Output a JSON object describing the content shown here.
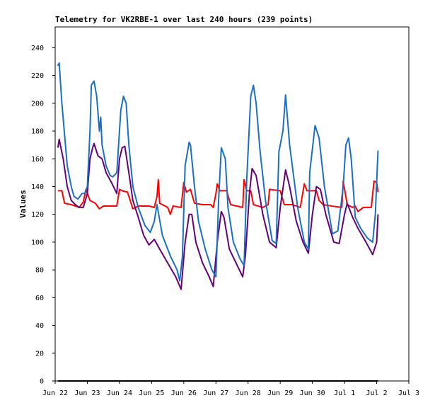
{
  "chart_data": {
    "type": "line",
    "title": "Telemetry for VK2RBE-1 over last 240 hours (239 points)",
    "y_label": "Values",
    "xlim": [
      0,
      264
    ],
    "xticks": [
      {
        "value": 0,
        "label": "Jun 22"
      },
      {
        "value": 24,
        "label": "Jun 23"
      },
      {
        "value": 48,
        "label": "Jun 24"
      },
      {
        "value": 72,
        "label": "Jun 25"
      },
      {
        "value": 96,
        "label": "Jun 26"
      },
      {
        "value": 120,
        "label": "Jun 27"
      },
      {
        "value": 144,
        "label": "Jun 28"
      },
      {
        "value": 168,
        "label": "Jun 29"
      },
      {
        "value": 192,
        "label": "Jun 30"
      },
      {
        "value": 216,
        "label": "Jul 1"
      },
      {
        "value": 240,
        "label": "Jul 2"
      },
      {
        "value": 264,
        "label": "Jul 3"
      }
    ],
    "ylim": [
      0,
      255
    ],
    "yticks": [
      0,
      20,
      40,
      60,
      80,
      100,
      120,
      140,
      160,
      180,
      200,
      220,
      240
    ],
    "grid": false,
    "series": [
      {
        "color": "#000000",
        "x": [
          2,
          241
        ],
        "values": [
          0,
          0
        ]
      },
      {
        "color": "#ff0000",
        "x": [
          2,
          5,
          7,
          12,
          18,
          21,
          23,
          26,
          30,
          33,
          36,
          42,
          46,
          48,
          50,
          54,
          56,
          58,
          62,
          70,
          74,
          76,
          77,
          78,
          84,
          86,
          88,
          94,
          96,
          98,
          101,
          104,
          110,
          116,
          118,
          120,
          121,
          123,
          128,
          131,
          140,
          141,
          143,
          146,
          148,
          155,
          159,
          160,
          168,
          171,
          177,
          183,
          186,
          188,
          195,
          197,
          200,
          206,
          214,
          215,
          218,
          222,
          224,
          226,
          230,
          236,
          238,
          240,
          241
        ],
        "values": [
          137,
          137,
          128,
          127,
          125,
          129,
          138,
          130,
          128,
          124,
          126,
          126,
          126,
          138,
          137,
          136,
          130,
          124,
          126,
          126,
          125,
          133,
          145,
          128,
          125,
          120,
          126,
          125,
          143,
          136,
          138,
          128,
          127,
          127,
          125,
          135,
          142,
          137,
          137,
          127,
          125,
          145,
          137,
          137,
          127,
          125,
          127,
          138,
          137,
          127,
          127,
          125,
          142,
          137,
          137,
          130,
          127,
          126,
          125,
          144,
          127,
          125,
          126,
          122,
          125,
          125,
          144,
          143,
          136
        ]
      },
      {
        "color": "#660077",
        "x": [
          2,
          3,
          6,
          9,
          12,
          15,
          18,
          21,
          24,
          26,
          28,
          29,
          32,
          35,
          38,
          42,
          46,
          48,
          50,
          52,
          55,
          58,
          62,
          66,
          70,
          74,
          78,
          84,
          90,
          94,
          97,
          100,
          102,
          105,
          110,
          115,
          118,
          121,
          124,
          126,
          130,
          135,
          140,
          142,
          145,
          147,
          150,
          155,
          160,
          165,
          168,
          172,
          175,
          180,
          185,
          189,
          192,
          195,
          198,
          202,
          208,
          212,
          216,
          218,
          222,
          226,
          232,
          237,
          240,
          241
        ],
        "values": [
          168,
          174,
          160,
          140,
          130,
          127,
          125,
          125,
          135,
          160,
          168,
          171,
          162,
          160,
          150,
          143,
          135,
          160,
          168,
          169,
          150,
          130,
          118,
          105,
          98,
          102,
          95,
          85,
          75,
          66,
          100,
          120,
          120,
          100,
          85,
          75,
          68,
          100,
          122,
          118,
          95,
          85,
          75,
          90,
          135,
          153,
          148,
          120,
          100,
          96,
          125,
          152,
          140,
          115,
          100,
          92,
          120,
          140,
          138,
          120,
          100,
          99,
          120,
          128,
          118,
          110,
          100,
          91,
          100,
          120
        ]
      },
      {
        "color": "#1a6fc4",
        "x": [
          2,
          3,
          5,
          9,
          12,
          14,
          17,
          20,
          22,
          24,
          26,
          27,
          29,
          31,
          33,
          34,
          35,
          38,
          41,
          43,
          46,
          49,
          51,
          53,
          55,
          58,
          62,
          67,
          71,
          74,
          76,
          80,
          86,
          91,
          93,
          95,
          97,
          100,
          101,
          104,
          107,
          112,
          117,
          120,
          122,
          124,
          127,
          129,
          133,
          138,
          141,
          143,
          146,
          148,
          150,
          153,
          157,
          162,
          165,
          167,
          170,
          172,
          175,
          181,
          186,
          189,
          190,
          194,
          197,
          201,
          207,
          211,
          215,
          217,
          219,
          221,
          224,
          228,
          233,
          237,
          239,
          241
        ],
        "values": [
          227,
          229,
          200,
          155,
          140,
          133,
          131,
          135,
          135,
          140,
          180,
          213,
          216,
          205,
          180,
          190,
          170,
          155,
          148,
          147,
          150,
          195,
          205,
          200,
          170,
          140,
          125,
          112,
          107,
          115,
          127,
          105,
          90,
          80,
          72,
          90,
          155,
          172,
          170,
          140,
          115,
          95,
          80,
          75,
          130,
          168,
          160,
          125,
          100,
          88,
          83,
          145,
          205,
          213,
          200,
          165,
          130,
          101,
          99,
          165,
          180,
          206,
          170,
          125,
          100,
          95,
          150,
          184,
          175,
          140,
          106,
          108,
          140,
          170,
          175,
          160,
          118,
          110,
          103,
          100,
          120,
          166
        ]
      }
    ]
  }
}
